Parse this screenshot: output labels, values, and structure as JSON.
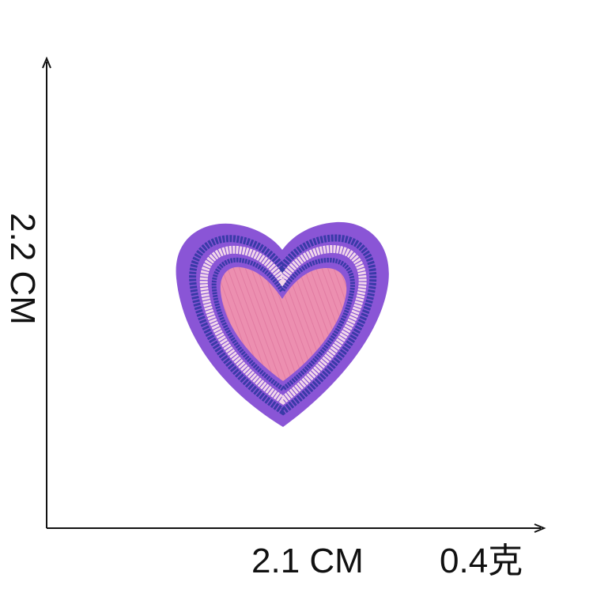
{
  "dimensions": {
    "height": "2.2 CM",
    "width": "2.1 CM",
    "weight": "0.4克"
  },
  "colors": {
    "background": "#ffffff",
    "axis": "#111111",
    "felt": "#8a55d6",
    "outer_stitch": "#3a3aa8",
    "white_stitch": "#f2d7ea",
    "inner_stitch": "#3a3aa8",
    "fill": "#ec8fb0",
    "fill_thread": "#d86a96"
  },
  "icon": "embroidered-heart-patch"
}
